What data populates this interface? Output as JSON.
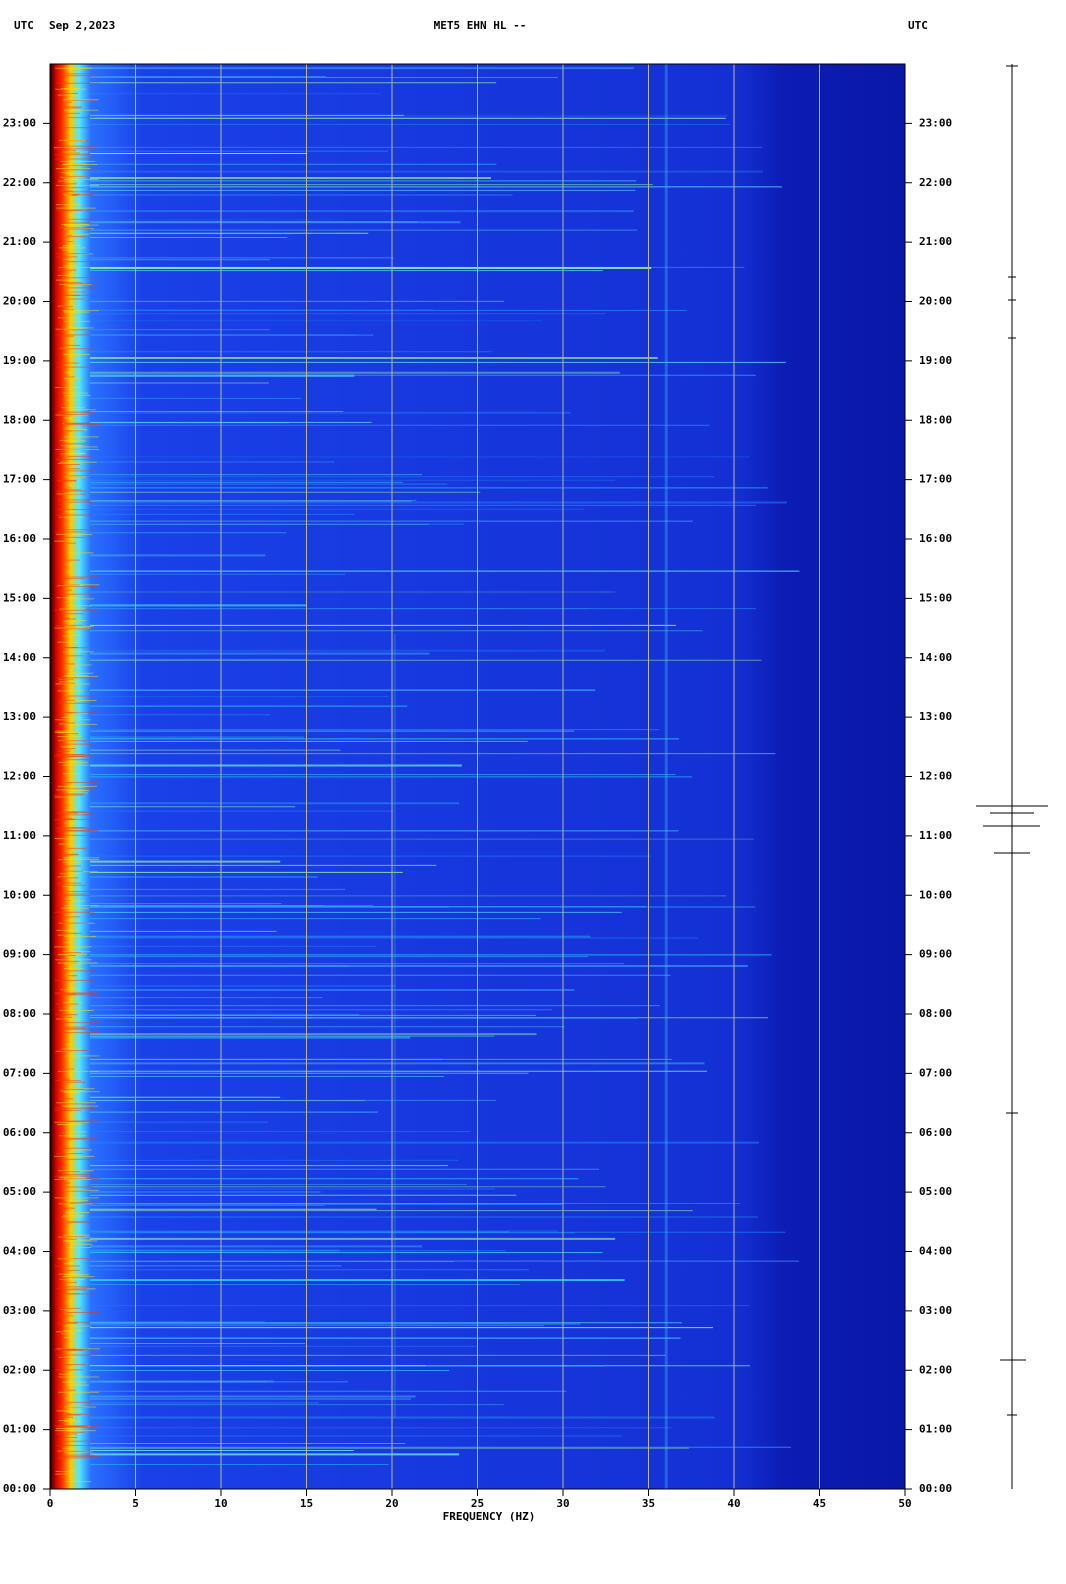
{
  "chart_data": {
    "type": "spectrogram",
    "title": "MET5 EHN HL --",
    "timezone_left": "UTC",
    "date": "Sep 2,2023",
    "timezone_right": "UTC",
    "x_label": "FREQUENCY (HZ)",
    "xlim": [
      0,
      50
    ],
    "xticks": [
      0,
      5,
      10,
      15,
      20,
      25,
      30,
      35,
      40,
      45,
      50
    ],
    "ylim": [
      0,
      24
    ],
    "yticks": [
      {
        "value": 0,
        "label": "00:00"
      },
      {
        "value": 1,
        "label": "01:00"
      },
      {
        "value": 2,
        "label": "02:00"
      },
      {
        "value": 3,
        "label": "03:00"
      },
      {
        "value": 4,
        "label": "04:00"
      },
      {
        "value": 5,
        "label": "05:00"
      },
      {
        "value": 6,
        "label": "06:00"
      },
      {
        "value": 7,
        "label": "07:00"
      },
      {
        "value": 8,
        "label": "08:00"
      },
      {
        "value": 9,
        "label": "09:00"
      },
      {
        "value": 10,
        "label": "10:00"
      },
      {
        "value": 11,
        "label": "11:00"
      },
      {
        "value": 12,
        "label": "12:00"
      },
      {
        "value": 13,
        "label": "13:00"
      },
      {
        "value": 14,
        "label": "14:00"
      },
      {
        "value": 15,
        "label": "15:00"
      },
      {
        "value": 16,
        "label": "16:00"
      },
      {
        "value": 17,
        "label": "17:00"
      },
      {
        "value": 18,
        "label": "18:00"
      },
      {
        "value": 19,
        "label": "19:00"
      },
      {
        "value": 20,
        "label": "20:00"
      },
      {
        "value": 21,
        "label": "21:00"
      },
      {
        "value": 22,
        "label": "22:00"
      },
      {
        "value": 23,
        "label": "23:00"
      }
    ],
    "grid": true,
    "grid_color": "#b8b890"
  }
}
